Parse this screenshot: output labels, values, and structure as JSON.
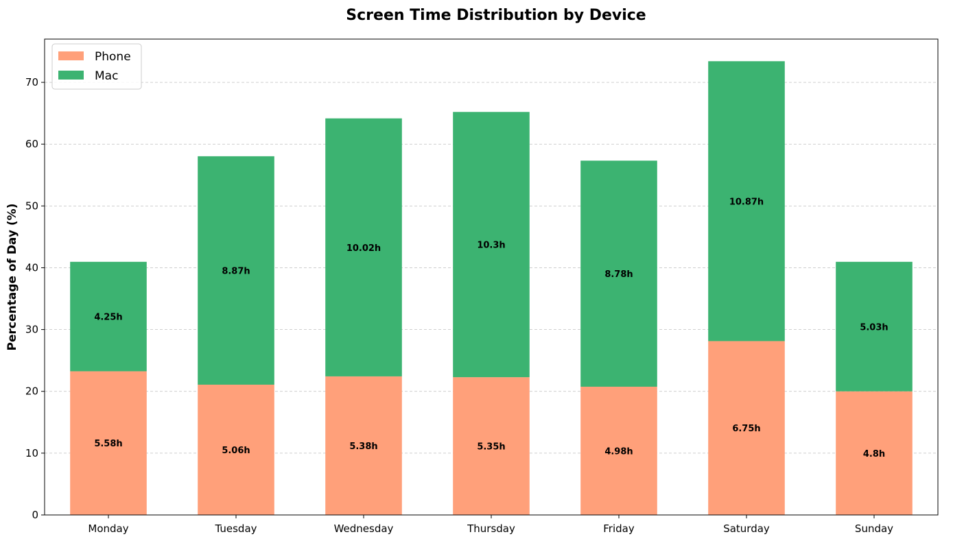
{
  "chart_data": {
    "type": "bar",
    "stacked": true,
    "title": "Screen Time Distribution by Device",
    "xlabel": "",
    "ylabel": "Percentage of Day (%)",
    "ylim": [
      0,
      77
    ],
    "yticks": [
      0,
      10,
      20,
      30,
      40,
      50,
      60,
      70
    ],
    "grid": "y-dashed",
    "legend_position": "top-left",
    "categories": [
      "Monday",
      "Tuesday",
      "Wednesday",
      "Thursday",
      "Friday",
      "Saturday",
      "Sunday"
    ],
    "series": [
      {
        "name": "Phone",
        "color": "#FFA07A",
        "values": [
          23.25,
          21.08,
          22.42,
          22.29,
          20.75,
          28.13,
          20.0
        ],
        "labels": [
          "5.58h",
          "5.06h",
          "5.38h",
          "5.35h",
          "4.98h",
          "6.75h",
          "4.8h"
        ]
      },
      {
        "name": "Mac",
        "color": "#3CB371",
        "values": [
          17.71,
          36.96,
          41.75,
          42.92,
          36.58,
          45.29,
          20.96
        ],
        "labels": [
          "4.25h",
          "8.87h",
          "10.02h",
          "10.3h",
          "8.78h",
          "10.87h",
          "5.03h"
        ]
      }
    ]
  }
}
